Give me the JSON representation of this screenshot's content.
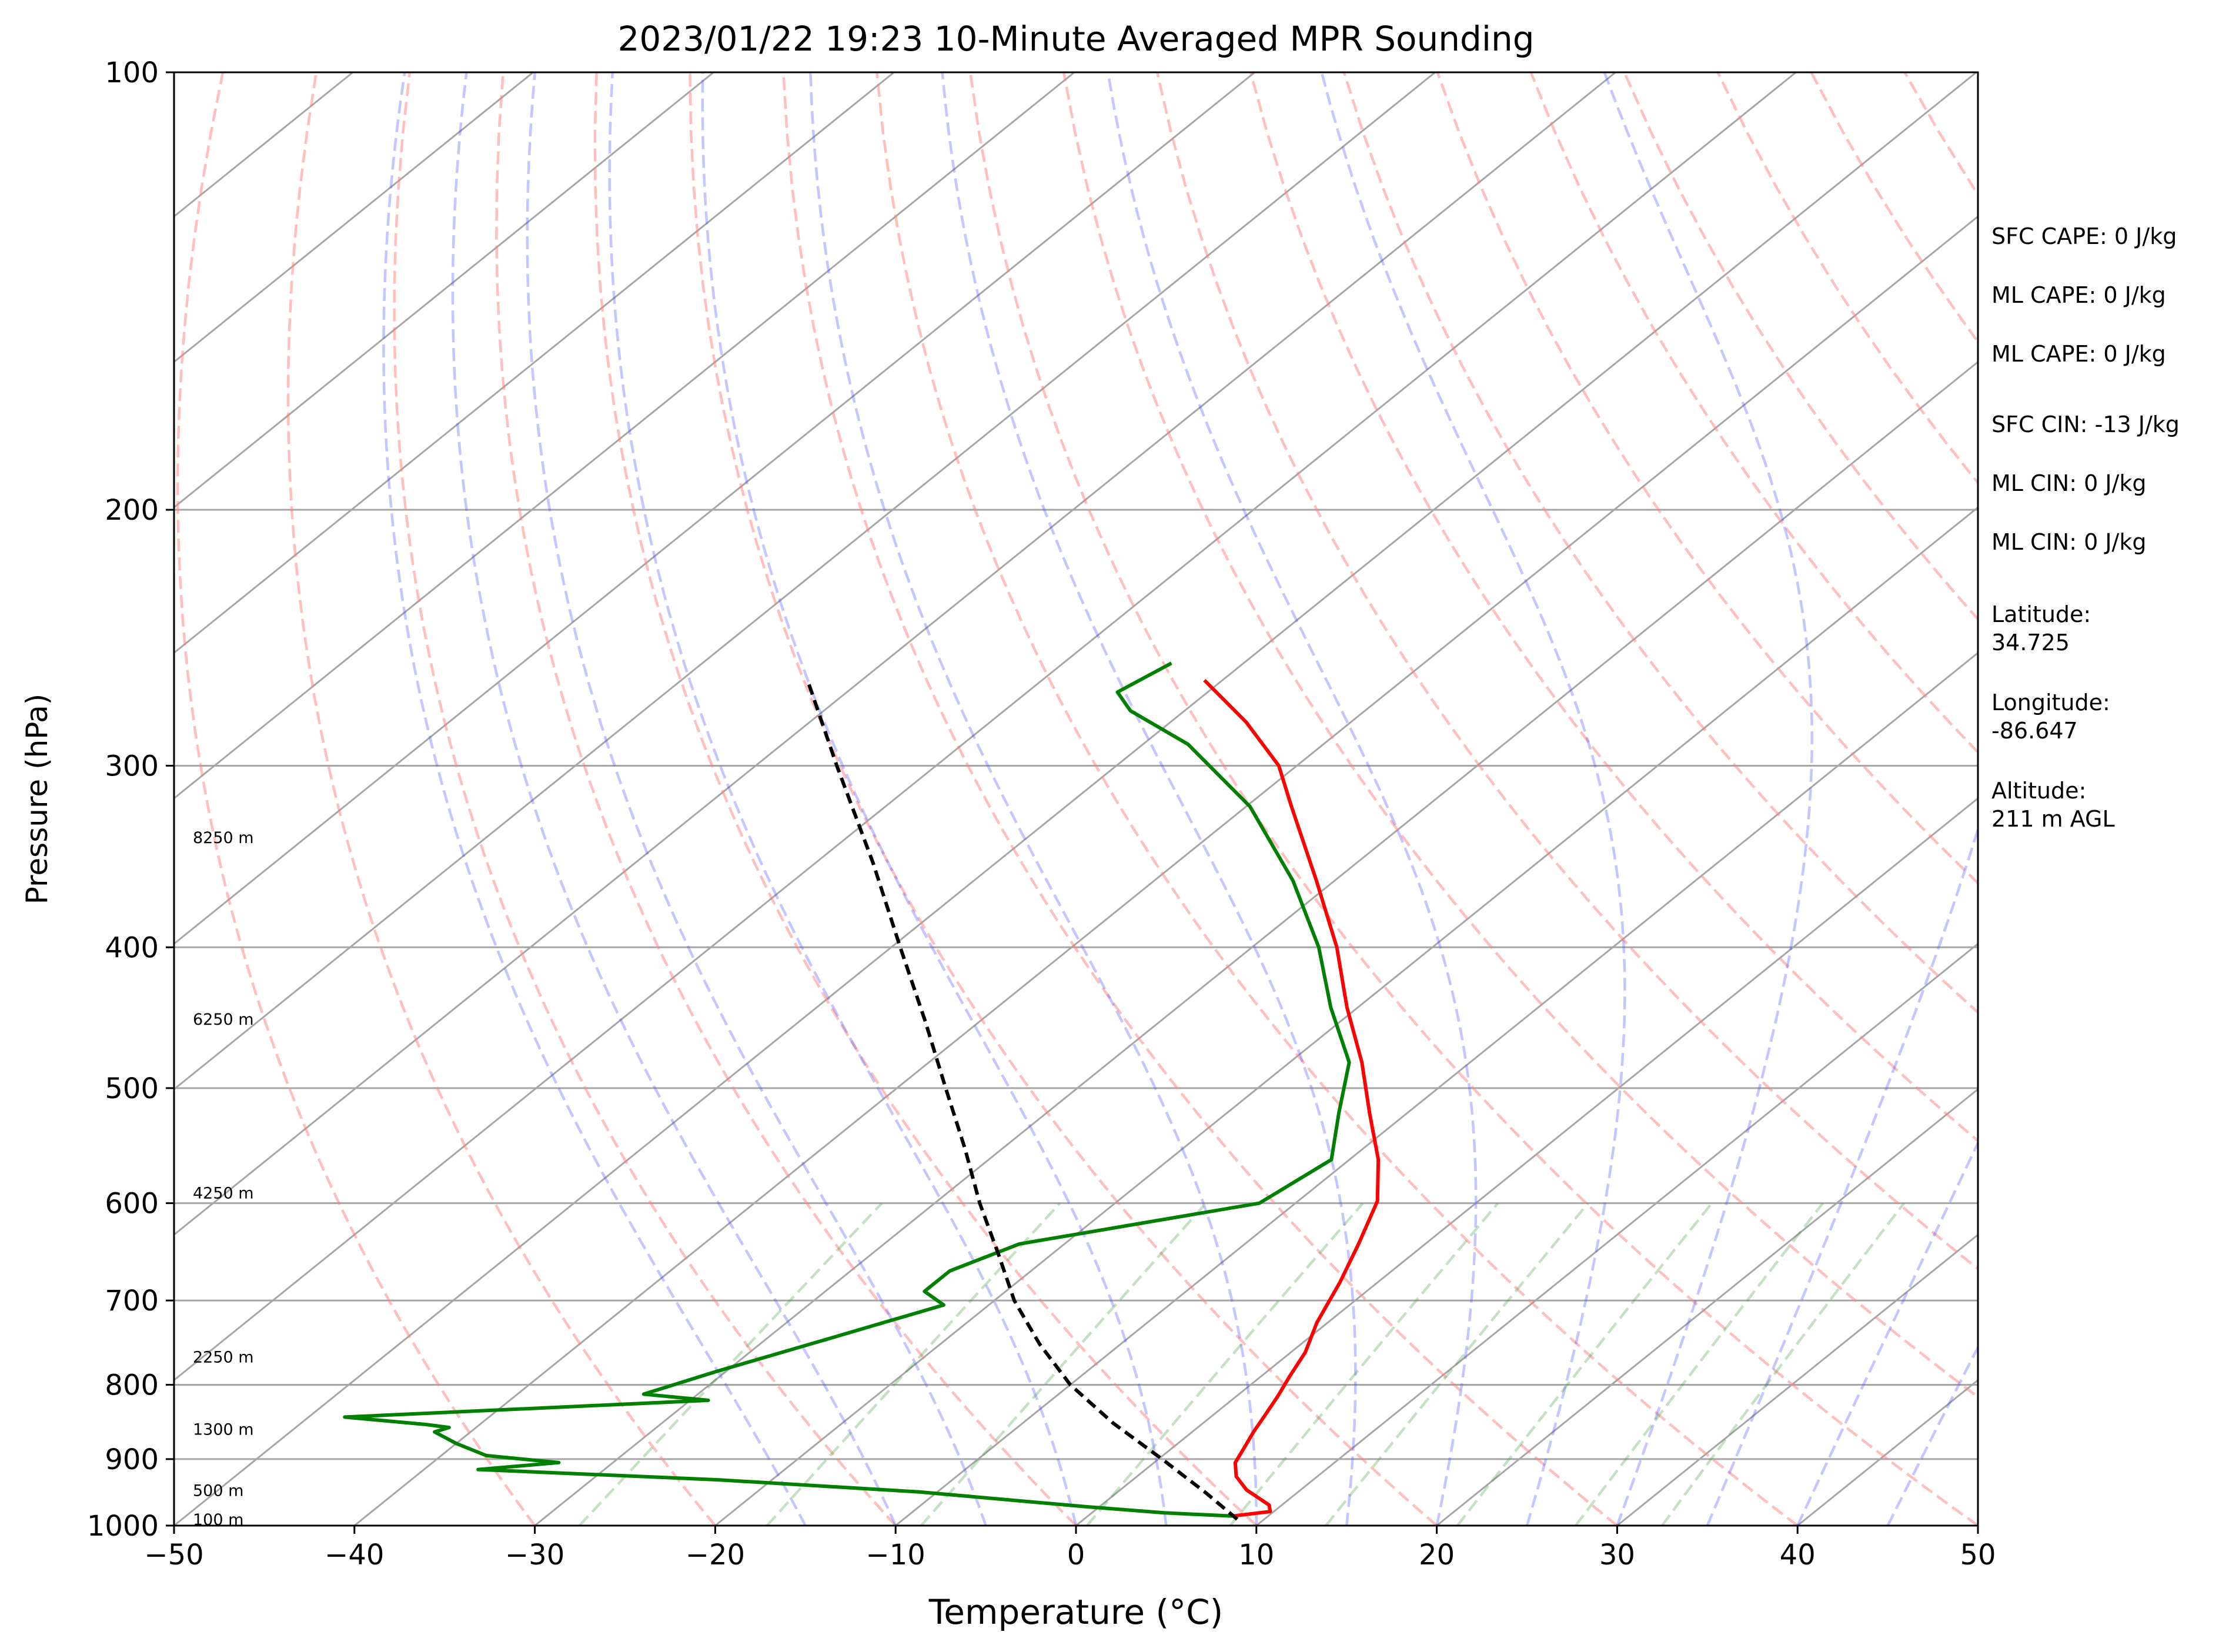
{
  "chart_data": {
    "type": "line",
    "title": "2023/01/22 19:23 10-Minute Averaged MPR Sounding",
    "xlabel": "Temperature (°C)",
    "ylabel": "Pressure (hPa)",
    "xlim": [
      -50,
      50
    ],
    "ylim": [
      1000,
      100
    ],
    "y_scale": "log",
    "grid": true,
    "x_ticks": [
      -50,
      -40,
      -30,
      -20,
      -10,
      0,
      10,
      20,
      30,
      40,
      50
    ],
    "x_tick_labels": [
      "−50",
      "−40",
      "−30",
      "−20",
      "−10",
      "0",
      "10",
      "20",
      "30",
      "40",
      "50"
    ],
    "y_ticks": [
      1000,
      900,
      800,
      700,
      600,
      500,
      400,
      300,
      200,
      100
    ],
    "y_tick_labels": [
      "1000",
      "900",
      "800",
      "700",
      "600",
      "500",
      "400",
      "300",
      "200",
      "100"
    ],
    "height_labels": [
      {
        "text": "100 m",
        "pressure": 990
      },
      {
        "text": "500 m",
        "pressure": 945
      },
      {
        "text": "1300 m",
        "pressure": 858
      },
      {
        "text": "2250 m",
        "pressure": 765
      },
      {
        "text": "4250 m",
        "pressure": 590
      },
      {
        "text": "6250 m",
        "pressure": 448
      },
      {
        "text": "8250 m",
        "pressure": 336
      }
    ],
    "series": [
      {
        "role": "temperature",
        "color": "#ff0000",
        "pressure": [
          985,
          978,
          968,
          945,
          925,
          905,
          885,
          862,
          840,
          815,
          790,
          760,
          725,
          680,
          640,
          598,
          560,
          520,
          480,
          440,
          400,
          360,
          320,
          300,
          280,
          262
        ],
        "temperature": [
          8.0,
          9.8,
          9.3,
          7.0,
          5.5,
          4.5,
          4.0,
          3.4,
          2.9,
          2.3,
          1.6,
          0.8,
          -0.6,
          -2.1,
          -3.7,
          -5.6,
          -8.4,
          -12.1,
          -16.0,
          -20.6,
          -25.3,
          -31.0,
          -37.5,
          -41.0,
          -45.8,
          -51.0
        ]
      },
      {
        "role": "dewpoint",
        "color": "#008000",
        "pressure": [
          985,
          980,
          970,
          948,
          930,
          915,
          905,
          895,
          878,
          862,
          856,
          852,
          842,
          820,
          812,
          783,
          748,
          705,
          690,
          668,
          640,
          600,
          560,
          520,
          480,
          440,
          400,
          360,
          320,
          290,
          275,
          267,
          255
        ],
        "temperature": [
          8.0,
          4.0,
          -1.0,
          -11.0,
          -23.0,
          -37.0,
          -33.0,
          -37.5,
          -40.0,
          -42.0,
          -41.5,
          -43.0,
          -48.0,
          -29.0,
          -33.0,
          -30.5,
          -27.0,
          -22.5,
          -24.5,
          -24.5,
          -22.5,
          -12.0,
          -11.0,
          -13.8,
          -16.7,
          -21.5,
          -26.3,
          -32.3,
          -39.8,
          -47.5,
          -53.0,
          -55.0,
          -54.0
        ]
      },
      {
        "role": "parcel",
        "color": "#000000",
        "pressure": [
          990,
          950,
          900,
          850,
          800,
          750,
          700,
          650,
          600,
          550,
          500,
          450,
          400,
          350,
          300,
          262
        ],
        "temperature": [
          8.5,
          5.0,
          0.2,
          -5.0,
          -10.0,
          -14.5,
          -18.9,
          -23.0,
          -27.5,
          -32.1,
          -37.3,
          -43.0,
          -49.5,
          -56.8,
          -65.5,
          -73.0
        ]
      }
    ]
  },
  "stats": {
    "sfc_cape": "SFC CAPE: 0 J/kg",
    "ml_cape_1": "ML CAPE: 0 J/kg",
    "ml_cape_2": "ML CAPE: 0 J/kg",
    "sfc_cin": "SFC CIN: -13 J/kg",
    "ml_cin_1": "ML CIN: 0 J/kg",
    "ml_cin_2": "ML CIN: 0 J/kg",
    "latitude_label": "Latitude:",
    "latitude_value": "34.725",
    "longitude_label": "Longitude:",
    "longitude_value": "-86.647",
    "altitude_label": "Altitude:",
    "altitude_value": "211 m AGL"
  }
}
